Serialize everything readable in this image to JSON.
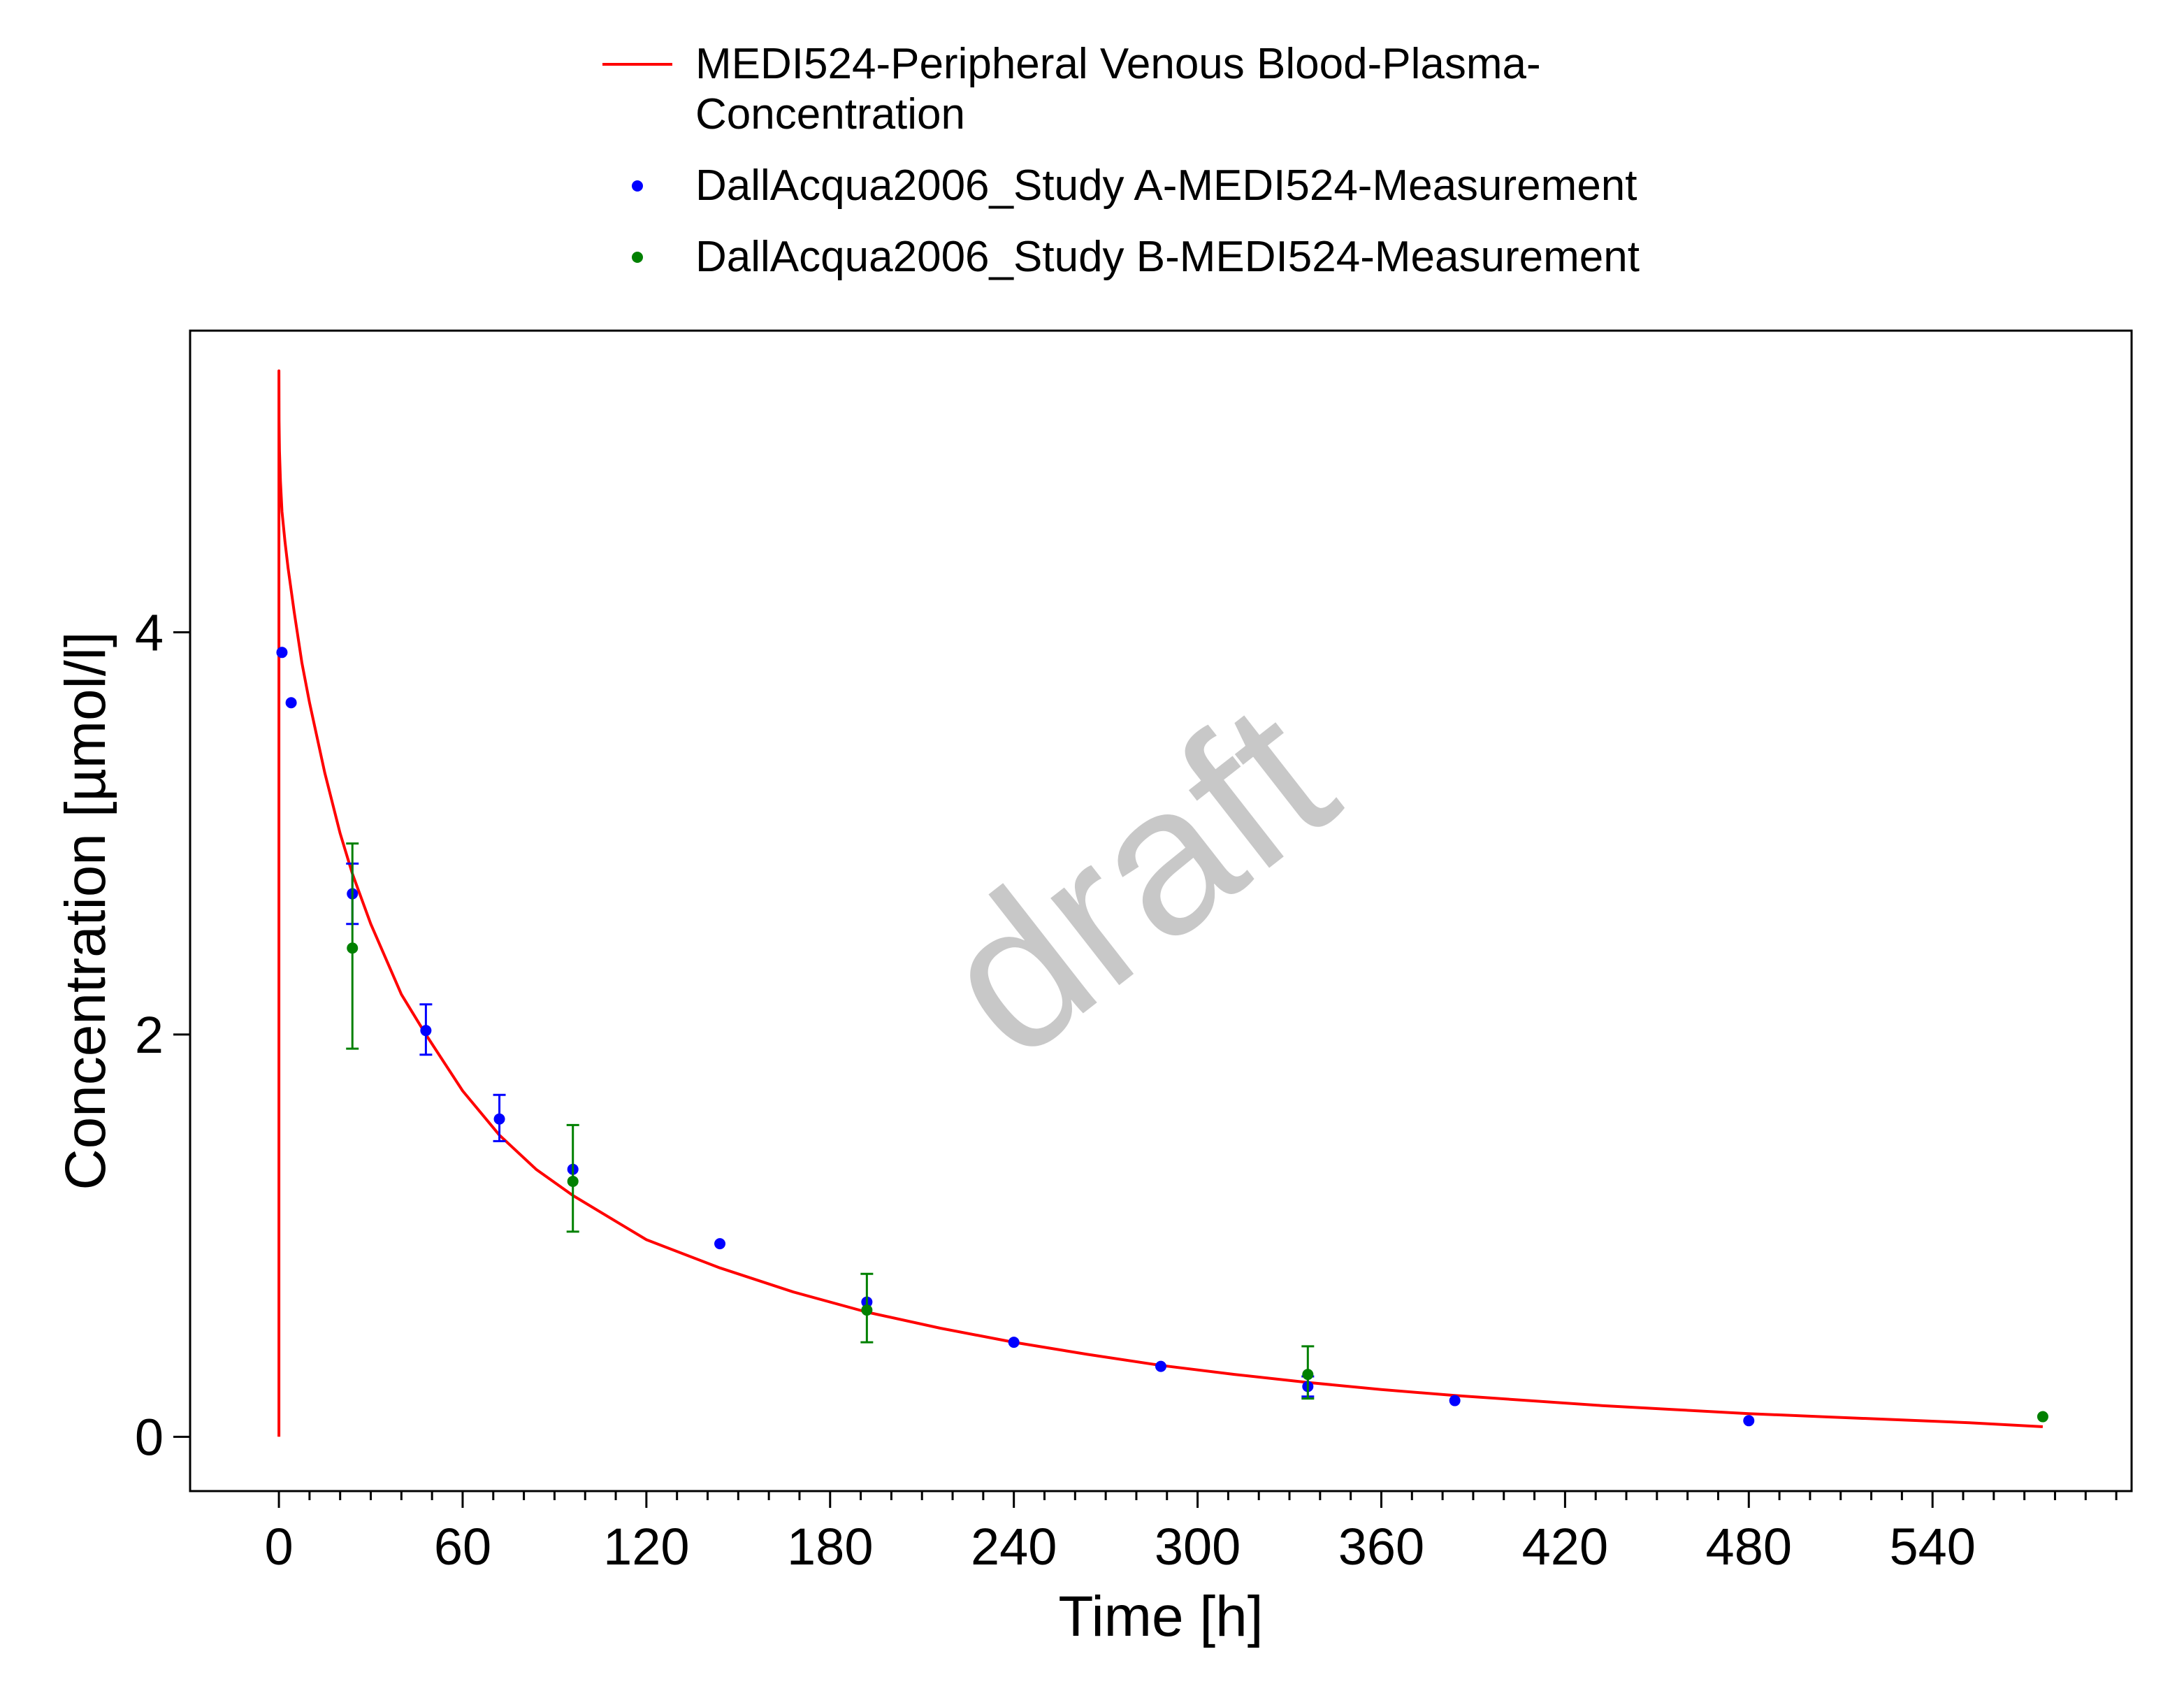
{
  "chart_data": {
    "type": "scatter",
    "xlabel": "Time [h]",
    "ylabel": "Concentration [µmol/l]",
    "xlim": [
      -29,
      605
    ],
    "ylim": [
      -0.27,
      5.5
    ],
    "x_ticks": [
      "0",
      "60",
      "120",
      "180",
      "240",
      "300",
      "360",
      "420",
      "480",
      "540"
    ],
    "y_ticks": [
      "0",
      "2",
      "4"
    ],
    "x_minor_tick_step": 10,
    "grid": false,
    "legend_position": "top",
    "watermark": "draft",
    "series": [
      {
        "name": "MEDI524-Peripheral Venous Blood-Plasma-Concentration",
        "legend_lines": [
          "MEDI524-Peripheral Venous Blood-Plasma-",
          "Concentration"
        ],
        "kind": "line",
        "color": "#ff0000",
        "x": [
          0,
          0,
          0.05,
          0.2,
          0.5,
          1,
          2,
          3,
          5,
          7.5,
          10,
          15,
          20,
          24,
          30,
          40,
          48,
          60,
          72,
          84,
          96,
          120,
          144,
          168,
          192,
          216,
          240,
          264,
          288,
          312,
          336,
          360,
          384,
          408,
          432,
          456,
          480,
          504,
          528,
          552,
          576
        ],
        "y": [
          0,
          5.3,
          5.05,
          4.9,
          4.75,
          4.6,
          4.45,
          4.32,
          4.1,
          3.85,
          3.65,
          3.3,
          3.0,
          2.8,
          2.55,
          2.2,
          2.0,
          1.72,
          1.5,
          1.33,
          1.2,
          0.98,
          0.84,
          0.72,
          0.62,
          0.54,
          0.47,
          0.41,
          0.355,
          0.31,
          0.27,
          0.235,
          0.205,
          0.18,
          0.155,
          0.135,
          0.115,
          0.1,
          0.085,
          0.07,
          0.05
        ]
      },
      {
        "name": "DallAcqua2006_Study A-MEDI524-Measurement",
        "kind": "points",
        "color": "#0000ff",
        "x": [
          1,
          4,
          24,
          48,
          72,
          96,
          144,
          192,
          240,
          288,
          336,
          384,
          480
        ],
        "y": [
          3.9,
          3.65,
          2.7,
          2.02,
          1.58,
          1.33,
          0.96,
          0.67,
          0.47,
          0.35,
          0.25,
          0.18,
          0.08
        ],
        "err_low": [
          null,
          null,
          2.55,
          1.9,
          1.47,
          null,
          null,
          null,
          null,
          null,
          0.2,
          null,
          null
        ],
        "err_high": [
          null,
          null,
          2.85,
          2.15,
          1.7,
          null,
          null,
          null,
          null,
          null,
          0.3,
          null,
          null
        ]
      },
      {
        "name": "DallAcqua2006_Study B-MEDI524-Measurement",
        "kind": "points",
        "color": "#008000",
        "x": [
          24,
          96,
          192,
          336,
          576
        ],
        "y": [
          2.43,
          1.27,
          0.63,
          0.31,
          0.1
        ],
        "err_low": [
          1.93,
          1.02,
          0.47,
          0.19,
          null
        ],
        "err_high": [
          2.95,
          1.55,
          0.81,
          0.45,
          null
        ]
      }
    ]
  }
}
